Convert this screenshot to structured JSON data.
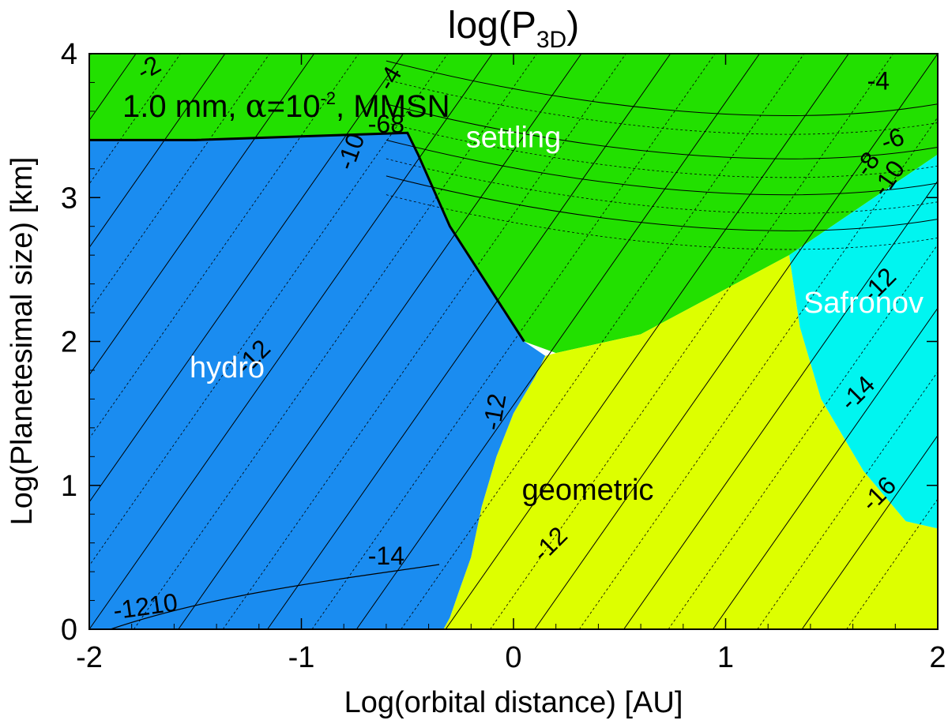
{
  "chart_data": {
    "type": "heatmap",
    "title_main": "log(P",
    "title_sub": "3D",
    "title_tail": ")",
    "xlabel": "Log(orbital distance) [AU]",
    "ylabel": "Log(Planetesimal size) [km]",
    "xlim": [
      -2,
      2
    ],
    "ylim": [
      0,
      4
    ],
    "x_ticks": [
      "-2",
      "-1",
      "0",
      "1",
      "2"
    ],
    "y_ticks": [
      "0",
      "1",
      "2",
      "3",
      "4"
    ],
    "annotation": {
      "prefix": "1.0 mm, ",
      "alpha": "α",
      "mid": "=10",
      "exponent": "-2",
      "suffix": ", MMSN"
    },
    "regimes": [
      {
        "name": "settling",
        "color": "#22e000",
        "text_color": "#ffffff",
        "label_at": [
          0.0,
          3.35
        ],
        "polygon": [
          [
            -2,
            4
          ],
          [
            2,
            4
          ],
          [
            2,
            3.3
          ],
          [
            1.3,
            2.6
          ],
          [
            0.6,
            2.05
          ],
          [
            0.2,
            1.92
          ],
          [
            0.05,
            2.0
          ],
          [
            -0.3,
            2.8
          ],
          [
            -0.45,
            3.3
          ],
          [
            -0.5,
            3.45
          ],
          [
            -1.5,
            3.4
          ],
          [
            -2,
            3.4
          ]
        ]
      },
      {
        "name": "hydro",
        "color": "#1a8cf0",
        "text_color": "#ffffff",
        "label_at": [
          -1.35,
          1.75
        ],
        "polygon": [
          [
            -2,
            3.4
          ],
          [
            -1.5,
            3.4
          ],
          [
            -0.5,
            3.45
          ],
          [
            -0.45,
            3.3
          ],
          [
            -0.3,
            2.8
          ],
          [
            0.05,
            2.0
          ],
          [
            0.15,
            1.9
          ],
          [
            0.1,
            1.75
          ],
          [
            0.0,
            1.5
          ],
          [
            -0.08,
            1.2
          ],
          [
            -0.15,
            0.85
          ],
          [
            -0.2,
            0.5
          ],
          [
            -0.26,
            0.25
          ],
          [
            -0.3,
            0.08
          ],
          [
            -0.33,
            0
          ],
          [
            -2,
            0
          ]
        ]
      },
      {
        "name": "geometric",
        "color": "#ddff00",
        "text_color": "#000000",
        "label_at": [
          0.35,
          0.9
        ],
        "polygon": [
          [
            -0.33,
            0
          ],
          [
            -0.3,
            0.08
          ],
          [
            -0.26,
            0.25
          ],
          [
            -0.2,
            0.5
          ],
          [
            -0.15,
            0.85
          ],
          [
            -0.08,
            1.2
          ],
          [
            0.0,
            1.5
          ],
          [
            0.1,
            1.75
          ],
          [
            0.15,
            1.9
          ],
          [
            0.2,
            1.92
          ],
          [
            0.6,
            2.05
          ],
          [
            1.3,
            2.6
          ],
          [
            1.35,
            2.1
          ],
          [
            1.45,
            1.6
          ],
          [
            1.65,
            1.1
          ],
          [
            1.85,
            0.75
          ],
          [
            2,
            0.7
          ],
          [
            2,
            0
          ]
        ]
      },
      {
        "name": "Safronov",
        "color": "#00f5f0",
        "text_color": "#ffffff",
        "label_at": [
          1.65,
          2.2
        ],
        "polygon": [
          [
            1.3,
            2.6
          ],
          [
            2,
            3.3
          ],
          [
            2,
            0.7
          ],
          [
            1.85,
            0.75
          ],
          [
            1.65,
            1.1
          ],
          [
            1.45,
            1.6
          ],
          [
            1.35,
            2.1
          ]
        ]
      }
    ],
    "contour_labels": [
      {
        "text": "-2",
        "x": -1.7,
        "y": 3.85,
        "angle": -30
      },
      {
        "text": "-4",
        "x": -0.55,
        "y": 3.8,
        "angle": -60
      },
      {
        "text": "-10",
        "x": -0.73,
        "y": 3.3,
        "angle": -70
      },
      {
        "text": "-68",
        "x": -0.6,
        "y": 3.45,
        "angle": 0
      },
      {
        "text": "-4",
        "x": 1.72,
        "y": 3.75,
        "angle": 0
      },
      {
        "text": "-6",
        "x": 1.8,
        "y": 3.35,
        "angle": -20
      },
      {
        "text": "-8",
        "x": 1.7,
        "y": 3.2,
        "angle": -55
      },
      {
        "text": "-10",
        "x": 1.8,
        "y": 3.1,
        "angle": -55
      },
      {
        "text": "-12",
        "x": -1.2,
        "y": 1.85,
        "angle": -45
      },
      {
        "text": "-12",
        "x": -0.05,
        "y": 1.5,
        "angle": -80
      },
      {
        "text": "-12",
        "x": 1.75,
        "y": 2.35,
        "angle": -45
      },
      {
        "text": "-14",
        "x": 1.65,
        "y": 1.6,
        "angle": -45
      },
      {
        "text": "-14",
        "x": -0.6,
        "y": 0.45,
        "angle": 0
      },
      {
        "text": "-12",
        "x": 0.2,
        "y": 0.55,
        "angle": -45
      },
      {
        "text": "-16",
        "x": 1.75,
        "y": 0.9,
        "angle": -45
      },
      {
        "text": "-1210",
        "x": -1.73,
        "y": 0.1,
        "angle": -8
      }
    ]
  }
}
